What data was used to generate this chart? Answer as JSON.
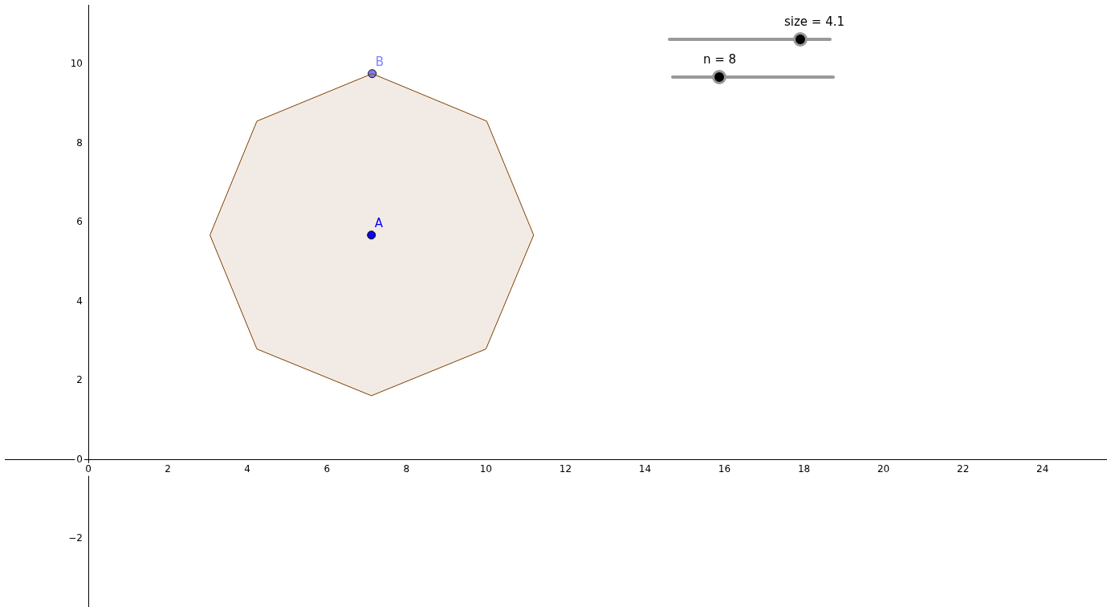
{
  "chart_data": {
    "type": "line",
    "xlim": [
      -2.1,
      25.6
    ],
    "ylim": [
      -3.7,
      11.5
    ],
    "xticks": [
      0,
      2,
      4,
      6,
      8,
      10,
      12,
      14,
      16,
      18,
      20,
      22,
      24
    ],
    "yticks": [
      -2,
      0,
      2,
      4,
      6,
      8,
      10
    ],
    "grid": false,
    "legend": false,
    "annotations": [
      "size = 4.1",
      "n = 8"
    ],
    "series": [
      {
        "type": "area",
        "color": "#7f3f00",
        "marker": "none",
        "x": [
          7.14,
          10.02,
          11.2,
          10.0,
          7.12,
          4.24,
          3.06,
          4.24,
          7.14
        ],
        "values": [
          9.76,
          8.56,
          5.68,
          2.8,
          1.62,
          2.8,
          5.68,
          8.56,
          9.76
        ]
      },
      {
        "type": "scatter",
        "name": "A",
        "color": "#0000ff",
        "marker": "circle",
        "x": [
          7.12
        ],
        "values": [
          5.68
        ]
      },
      {
        "type": "scatter",
        "name": "B",
        "color": "#7f7fff",
        "marker": "circle",
        "x": [
          7.14
        ],
        "values": [
          9.76
        ]
      }
    ]
  }
}
